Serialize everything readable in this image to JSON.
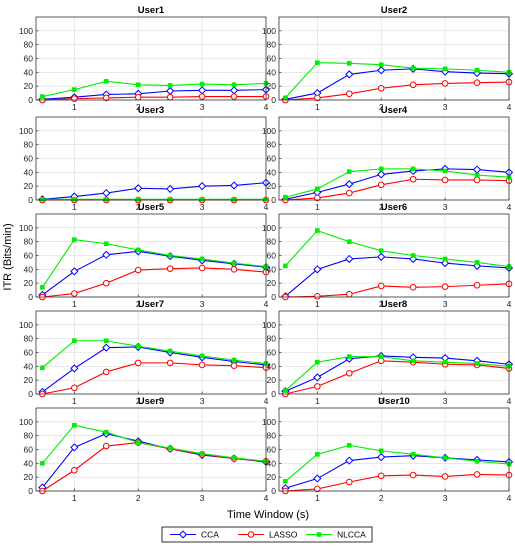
{
  "chart_data": {
    "type": "line",
    "xlabel": "Time Window (s)",
    "ylabel": "ITR (Bits/min)",
    "x": [
      0.5,
      1,
      1.5,
      2,
      2.5,
      3,
      3.5,
      4
    ],
    "xticks": [
      1,
      2,
      3,
      4
    ],
    "xlim": [
      0.4,
      4
    ],
    "ylim": [
      0,
      120
    ],
    "yticks": [
      0,
      20,
      40,
      60,
      80,
      100
    ],
    "grid": true,
    "legend": {
      "position": "bottom-center",
      "entries": [
        "CCA",
        "LASSO",
        "NLCCA"
      ]
    },
    "colors": {
      "CCA": "#0000ff",
      "LASSO": "#ff0000",
      "NLCCA": "#00ee00"
    },
    "markers": {
      "CCA": "diamond",
      "LASSO": "circle",
      "NLCCA": "square"
    },
    "panels": [
      {
        "title": "User1",
        "series": {
          "CCA": [
            1,
            4,
            8,
            9,
            13,
            14,
            14,
            15
          ],
          "LASSO": [
            0,
            2,
            3,
            4,
            4,
            5,
            5,
            5
          ],
          "NLCCA": [
            5,
            15,
            27,
            22,
            21,
            23,
            22,
            24
          ]
        }
      },
      {
        "title": "User2",
        "series": {
          "CCA": [
            1,
            10,
            37,
            43,
            45,
            41,
            39,
            38
          ],
          "LASSO": [
            0,
            3,
            9,
            17,
            22,
            24,
            25,
            26
          ],
          "NLCCA": [
            3,
            54,
            53,
            51,
            46,
            45,
            43,
            40
          ]
        }
      },
      {
        "title": "User3",
        "series": {
          "CCA": [
            1,
            5,
            10,
            17,
            16,
            20,
            21,
            25
          ],
          "LASSO": [
            0,
            0,
            0,
            0,
            0,
            0,
            0,
            0
          ],
          "NLCCA": [
            1,
            1,
            1,
            1,
            1,
            1,
            1,
            1
          ]
        }
      },
      {
        "title": "User4",
        "series": {
          "CCA": [
            1,
            11,
            23,
            37,
            42,
            45,
            44,
            40
          ],
          "LASSO": [
            0,
            3,
            10,
            22,
            30,
            29,
            29,
            28
          ],
          "NLCCA": [
            4,
            16,
            41,
            45,
            45,
            42,
            36,
            33
          ]
        }
      },
      {
        "title": "User5",
        "series": {
          "CCA": [
            3,
            37,
            61,
            66,
            59,
            53,
            48,
            43
          ],
          "LASSO": [
            0,
            5,
            20,
            39,
            41,
            42,
            40,
            36
          ],
          "NLCCA": [
            14,
            83,
            77,
            68,
            60,
            55,
            49,
            44
          ]
        }
      },
      {
        "title": "User6",
        "series": {
          "CCA": [
            1,
            40,
            55,
            58,
            55,
            49,
            45,
            42
          ],
          "LASSO": [
            0,
            1,
            4,
            16,
            14,
            15,
            17,
            19
          ],
          "NLCCA": [
            45,
            96,
            80,
            67,
            60,
            55,
            50,
            44
          ]
        }
      },
      {
        "title": "User7",
        "series": {
          "CCA": [
            3,
            37,
            67,
            68,
            60,
            53,
            47,
            42
          ],
          "LASSO": [
            0,
            9,
            32,
            45,
            45,
            42,
            41,
            38
          ],
          "NLCCA": [
            38,
            77,
            77,
            69,
            62,
            55,
            49,
            44
          ]
        }
      },
      {
        "title": "User8",
        "series": {
          "CCA": [
            4,
            24,
            51,
            55,
            53,
            52,
            48,
            43
          ],
          "LASSO": [
            0,
            11,
            30,
            48,
            46,
            43,
            42,
            37
          ],
          "NLCCA": [
            5,
            46,
            54,
            54,
            48,
            46,
            44,
            40
          ]
        }
      },
      {
        "title": "User9",
        "series": {
          "CCA": [
            5,
            63,
            83,
            72,
            61,
            52,
            47,
            42
          ],
          "LASSO": [
            0,
            30,
            65,
            70,
            61,
            53,
            47,
            43
          ],
          "NLCCA": [
            40,
            95,
            85,
            70,
            62,
            54,
            48,
            43
          ]
        }
      },
      {
        "title": "User10",
        "series": {
          "CCA": [
            4,
            18,
            44,
            49,
            51,
            48,
            45,
            42
          ],
          "LASSO": [
            0,
            3,
            13,
            22,
            23,
            21,
            24,
            23
          ],
          "NLCCA": [
            14,
            53,
            66,
            58,
            53,
            48,
            43,
            39
          ]
        }
      }
    ]
  }
}
